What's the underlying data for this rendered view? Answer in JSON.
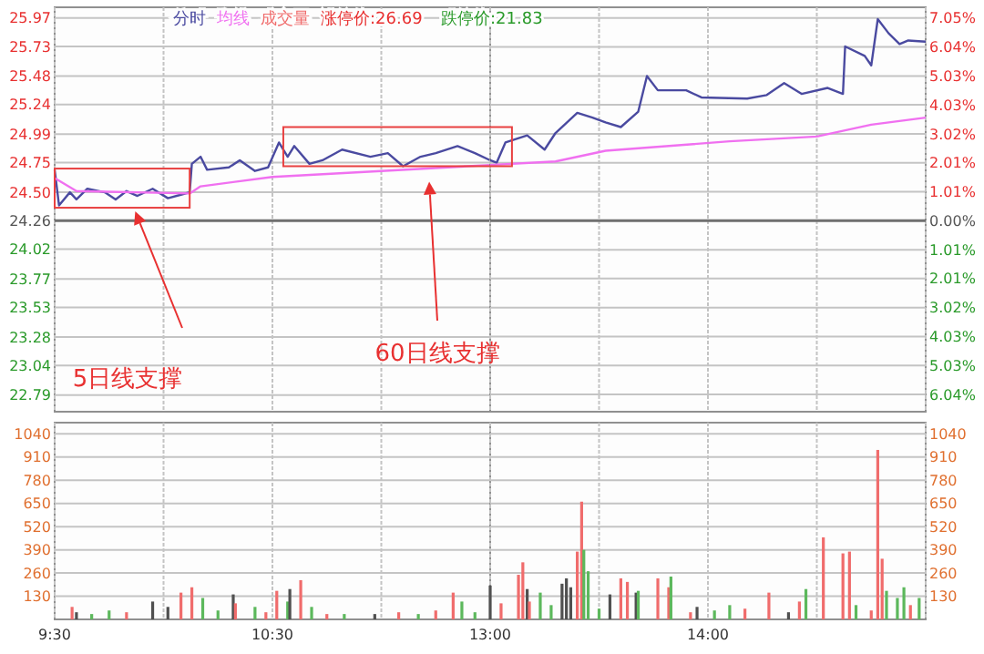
{
  "chart_data": [
    {
      "type": "line",
      "grid": true,
      "tick_labels": "y",
      "xlim": [
        9.5,
        11.5
      ],
      "xticks": [
        {
          "value": 9.5,
          "label": null
        },
        {
          "value": 10,
          "label": null
        },
        {
          "value": 10.5,
          "label": null
        },
        {
          "value": 11,
          "label": null
        },
        {
          "value": 11.5,
          "label": null
        }
      ],
      "ylim": [
        22.65,
        26.06
      ],
      "yticks": [
        22.79,
        23.04,
        23.28,
        23.53,
        23.77,
        24.02,
        24.26,
        {
          "value": 24.5,
          "label": "24.50"
        },
        24.75,
        24.99,
        25.24,
        25.48,
        25.73,
        25.97
      ],
      "ref_lines": [
        {
          "axis": "y",
          "value": 24.26,
          "color": "#707070"
        }
      ],
      "series": [
        {
          "name": "分时",
          "color": "#4a4aa0",
          "x": [
            9.5,
            9.52,
            9.57,
            9.6,
            9.65,
            9.73,
            9.78,
            9.83,
            9.88,
            9.95,
            10.02,
            10.08,
            10.12,
            10.13,
            10.17,
            10.2,
            10.3,
            10.35,
            10.42,
            10.48,
            10.53,
            10.57,
            10.6,
            10.67,
            10.73,
            10.82,
            10.95,
            11.03,
            11.1,
            11.18,
            11.25,
            11.35,
            11.43,
            11.5
          ],
          "values": [
            24.69,
            24.39,
            24.5,
            24.44,
            24.53,
            24.5,
            24.44,
            24.51,
            24.47,
            24.53,
            24.45,
            24.48,
            24.5,
            24.74,
            24.8,
            24.69,
            24.71,
            24.77,
            24.68,
            24.71,
            24.92,
            24.8,
            24.89,
            24.74,
            24.77,
            24.86,
            24.8,
            24.83,
            24.72,
            24.8,
            24.83,
            24.89,
            24.83,
            24.77
          ]
        },
        {
          "name": "均线",
          "color": "#f070f0",
          "x": [
            9.5,
            9.6,
            10.12,
            10.17,
            10.5,
            11,
            11.5
          ],
          "values": [
            24.62,
            24.51,
            24.49,
            24.55,
            24.63,
            24.68,
            24.73
          ]
        }
      ],
      "annotations": [
        "涨停价:26.69",
        "跌停价:21.83",
        "5日线支撑",
        "60日线支撑"
      ]
    },
    {
      "type": "line",
      "grid": true,
      "tick_labels": "y",
      "xlim": [
        13,
        15
      ],
      "xticks": [
        {
          "value": 13,
          "label": null
        },
        {
          "value": 13.5,
          "label": null
        },
        {
          "value": 14,
          "label": null
        },
        {
          "value": 14.5,
          "label": null
        },
        {
          "value": 15,
          "label": null
        }
      ],
      "ylim": [
        22.65,
        26.06
      ],
      "y2lim": [
        -6.64,
        7.42
      ],
      "y2ticks": [
        {
          "value": -6.04,
          "label": "6.04%"
        },
        {
          "value": -5.03,
          "label": "5.03%"
        },
        {
          "value": -4.03,
          "label": "4.03%"
        },
        {
          "value": -3.02,
          "label": "3.02%"
        },
        {
          "value": -2.01,
          "label": "2.01%"
        },
        {
          "value": -1.01,
          "label": "1.01%"
        },
        {
          "value": 0,
          "label": "0.00%"
        },
        {
          "value": 1.01,
          "label": "1.01%"
        },
        {
          "value": 2.01,
          "label": "2.01%"
        },
        {
          "value": 3.02,
          "label": "3.02%"
        },
        {
          "value": 4.03,
          "label": "4.03%"
        },
        {
          "value": 5.03,
          "label": "5.03%"
        },
        {
          "value": 6.04,
          "label": "6.04%"
        },
        {
          "value": 7.05,
          "label": "7.05%"
        }
      ],
      "ref_lines": [
        {
          "axis": "y",
          "value": 24.26,
          "color": "#707070"
        }
      ],
      "series": [
        {
          "color": "#4a4aa0",
          "x": [
            13,
            13.03,
            13.07,
            13.17,
            13.25,
            13.3,
            13.4,
            13.47,
            13.53,
            13.6,
            13.68,
            13.72,
            13.77,
            13.9,
            13.97,
            14.18,
            14.27,
            14.35,
            14.43,
            14.55,
            14.62,
            14.63,
            14.72,
            14.75,
            14.78,
            14.83,
            14.88,
            14.92,
            15
          ],
          "values": [
            24.77,
            24.75,
            24.92,
            24.98,
            24.86,
            25.0,
            25.17,
            25.13,
            25.09,
            25.05,
            25.18,
            25.48,
            25.36,
            25.36,
            25.3,
            25.29,
            25.32,
            25.42,
            25.33,
            25.38,
            25.33,
            25.73,
            25.65,
            25.57,
            25.96,
            25.84,
            25.75,
            25.78,
            25.77
          ]
        },
        {
          "color": "#f070f0",
          "x": [
            13,
            13.3,
            13.53,
            14.1,
            14.5,
            14.75,
            15
          ],
          "values": [
            24.73,
            24.76,
            24.85,
            24.93,
            24.97,
            25.07,
            25.13
          ]
        }
      ]
    },
    {
      "type": "bar",
      "grid": true,
      "xlim": [
        9.5,
        11.5
      ],
      "xticks": [
        {
          "value": 9.5,
          "label": "9:30"
        },
        {
          "value": 10,
          "label": null
        },
        {
          "value": 10.5,
          "label": "10:30"
        },
        {
          "value": 11,
          "label": null
        },
        {
          "value": 11.5,
          "label": null
        }
      ],
      "ylim": [
        0,
        1103
      ],
      "yticks": [
        130,
        260,
        390,
        520,
        650,
        780,
        910,
        1040
      ],
      "series": [
        {
          "name": "成交量",
          "color": "#f06c6c",
          "x": [
            9.58,
            9.6,
            9.67,
            9.75,
            9.83,
            9.95,
            10.02,
            10.08,
            10.13,
            10.18,
            10.25,
            10.32,
            10.33,
            10.42,
            10.47,
            10.52,
            10.57,
            10.58,
            10.63,
            10.68,
            10.75,
            10.83,
            10.97,
            11.08,
            11.17,
            11.25,
            11.33,
            11.37,
            11.43
          ],
          "values": [
            70,
            40,
            30,
            50,
            40,
            100,
            70,
            150,
            180,
            120,
            50,
            140,
            90,
            70,
            40,
            160,
            100,
            170,
            220,
            70,
            30,
            30,
            30,
            40,
            30,
            50,
            150,
            100,
            40
          ],
          "colors": [
            "#f06c6c",
            "#505050",
            "#5cb85c",
            "#5cb85c",
            "#f06c6c",
            "#505050",
            "#505050",
            "#f06c6c",
            "#f06c6c",
            "#5cb85c",
            "#5cb85c",
            "#505050",
            "#f06c6c",
            "#5cb85c",
            "#f06c6c",
            "#f06c6c",
            "#5cb85c",
            "#505050",
            "#f06c6c",
            "#5cb85c",
            "#f06c6c",
            "#5cb85c",
            "#505050",
            "#f06c6c",
            "#5cb85c",
            "#f06c6c",
            "#f06c6c",
            "#5cb85c",
            "#5cb85c"
          ]
        }
      ]
    },
    {
      "type": "bar",
      "grid": true,
      "xlim": [
        13,
        15
      ],
      "xticks": [
        {
          "value": 13,
          "label": "13:00"
        },
        {
          "value": 13.5,
          "label": null
        },
        {
          "value": 14,
          "label": "14:00"
        },
        {
          "value": 14.5,
          "label": null
        },
        {
          "value": 15,
          "label": null
        }
      ],
      "ylim": [
        0,
        1103
      ],
      "yticks": [
        130,
        260,
        390,
        520,
        650,
        780,
        910,
        1040
      ],
      "series": [
        {
          "x": [
            13,
            13.05,
            13.13,
            13.15,
            13.17,
            13.18,
            13.23,
            13.28,
            13.33,
            13.35,
            13.37,
            13.4,
            13.42,
            13.43,
            13.45,
            13.5,
            13.55,
            13.6,
            13.63,
            13.67,
            13.68,
            13.77,
            13.82,
            13.83,
            13.92,
            13.95,
            14.03,
            14.1,
            14.17,
            14.28,
            14.37,
            14.42,
            14.45,
            14.53,
            14.62,
            14.65,
            14.68,
            14.75,
            14.78,
            14.8,
            14.82,
            14.87,
            14.9,
            14.93,
            14.97
          ],
          "values": [
            190,
            90,
            250,
            320,
            170,
            100,
            150,
            80,
            200,
            230,
            180,
            380,
            660,
            390,
            270,
            60,
            140,
            230,
            210,
            150,
            160,
            230,
            180,
            240,
            40,
            70,
            50,
            80,
            60,
            150,
            40,
            100,
            170,
            460,
            370,
            380,
            80,
            50,
            950,
            340,
            160,
            120,
            180,
            80,
            120
          ],
          "colors": [
            "#505050",
            "#f06c6c",
            "#f06c6c",
            "#f06c6c",
            "#505050",
            "#f06c6c",
            "#5cb85c",
            "#5cb85c",
            "#505050",
            "#505050",
            "#505050",
            "#f06c6c",
            "#f06c6c",
            "#5cb85c",
            "#5cb85c",
            "#5cb85c",
            "#505050",
            "#f06c6c",
            "#f06c6c",
            "#505050",
            "#5cb85c",
            "#f06c6c",
            "#f06c6c",
            "#5cb85c",
            "#f06c6c",
            "#505050",
            "#5cb85c",
            "#5cb85c",
            "#f06c6c",
            "#f06c6c",
            "#505050",
            "#f06c6c",
            "#5cb85c",
            "#f06c6c",
            "#f06c6c",
            "#f06c6c",
            "#5cb85c",
            "#f06c6c",
            "#f06c6c",
            "#f06c6c",
            "#5cb85c",
            "#5cb85c",
            "#5cb85c",
            "#f06c6c",
            "#5cb85c"
          ]
        }
      ]
    }
  ]
}
